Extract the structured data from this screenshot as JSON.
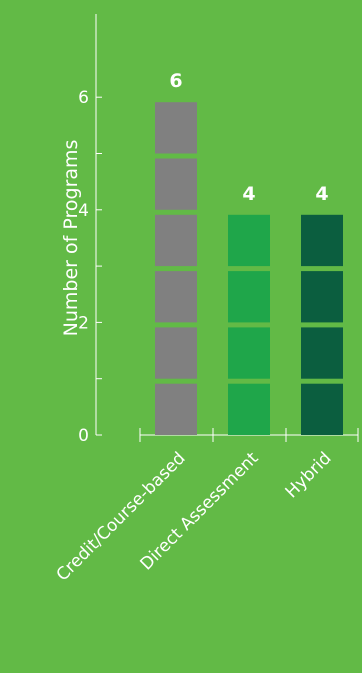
{
  "colors": {
    "background": "#62ba46",
    "axis": "#ffffff",
    "text": "#ffffff",
    "bar_colors": [
      "#808080",
      "#1fa64a",
      "#0b5e3f"
    ]
  },
  "chart_data": {
    "type": "bar",
    "style": "stacked-unit-blocks",
    "categories": [
      "Credit/Course-based",
      "Direct Assessment",
      "Hybrid"
    ],
    "values": [
      6,
      4,
      4
    ],
    "data_labels": [
      "6",
      "4",
      "4"
    ],
    "title": "",
    "xlabel": "",
    "ylabel": "Number of Programs",
    "ylim": [
      0,
      6
    ],
    "yticks": [
      0,
      2,
      4,
      6
    ],
    "grid": false,
    "legend": "none"
  }
}
